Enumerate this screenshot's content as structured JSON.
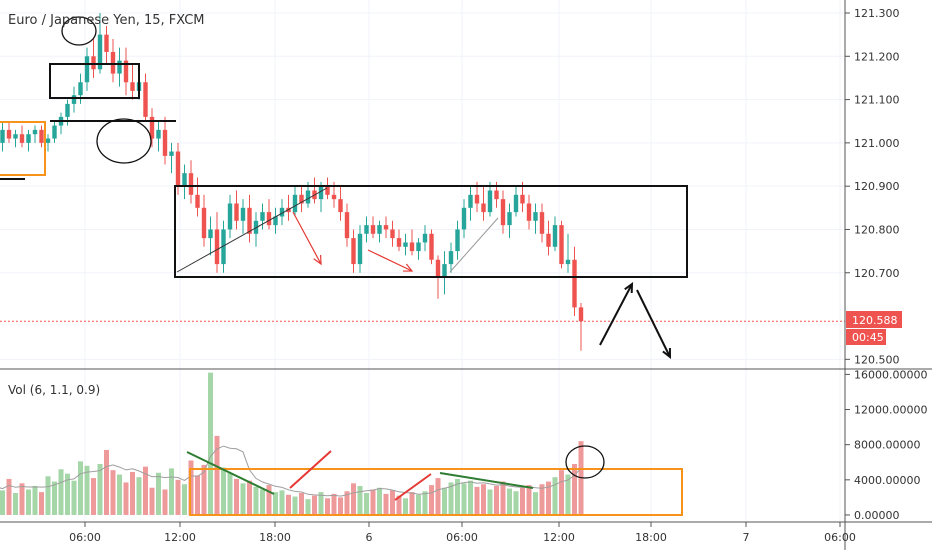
{
  "header": {
    "title": "Euro / Japanese Yen, 15, FXCM"
  },
  "volume": {
    "label": "Vol (6, 1.1, 0.9)"
  },
  "price_badge": {
    "value": "120.588",
    "countdown": "00:45"
  },
  "colors": {
    "up": "#26a69a",
    "down": "#ef5350",
    "up_vol": "#a5d6a7",
    "down_vol": "#ef9a9a",
    "orange": "#f7931a",
    "red_line": "#e53935",
    "green_line": "#2e7d32",
    "axis_text": "#333333"
  },
  "chart_data": [
    {
      "type": "candlestick",
      "title": "Euro / Japanese Yen, 15, FXCM",
      "y_ticks": [
        "121.300",
        "121.200",
        "121.100",
        "121.000",
        "120.900",
        "120.800",
        "120.700",
        "120.500"
      ],
      "ylim": [
        120.48,
        121.33
      ],
      "x_ticks": [
        "06:00",
        "12:00",
        "18:00",
        "6",
        "06:00",
        "12:00",
        "18:00",
        "7",
        "06:00"
      ],
      "last_price": 120.588,
      "ohlc": [
        [
          121.04,
          121.06,
          120.99,
          121.0
        ],
        [
          121.0,
          121.05,
          120.98,
          121.03
        ],
        [
          121.03,
          121.05,
          121.0,
          121.01
        ],
        [
          121.01,
          121.03,
          120.99,
          121.02
        ],
        [
          121.02,
          121.04,
          120.99,
          121.0
        ],
        [
          121.0,
          121.03,
          120.98,
          121.02
        ],
        [
          121.02,
          121.04,
          121.0,
          121.03
        ],
        [
          121.03,
          121.04,
          120.99,
          121.0
        ],
        [
          121.0,
          121.02,
          120.98,
          121.01
        ],
        [
          121.01,
          121.05,
          121.0,
          121.04
        ],
        [
          121.04,
          121.07,
          121.02,
          121.06
        ],
        [
          121.06,
          121.1,
          121.04,
          121.09
        ],
        [
          121.09,
          121.13,
          121.07,
          121.11
        ],
        [
          121.11,
          121.16,
          121.09,
          121.14
        ],
        [
          121.14,
          121.22,
          121.12,
          121.2
        ],
        [
          121.2,
          121.24,
          121.15,
          121.17
        ],
        [
          121.17,
          121.3,
          121.16,
          121.25
        ],
        [
          121.25,
          121.27,
          121.18,
          121.21
        ],
        [
          121.21,
          121.24,
          121.14,
          121.16
        ],
        [
          121.16,
          121.22,
          121.13,
          121.19
        ],
        [
          121.19,
          121.22,
          121.11,
          121.14
        ],
        [
          121.14,
          121.18,
          121.1,
          121.12
        ],
        [
          121.12,
          121.16,
          121.1,
          121.14
        ],
        [
          121.14,
          121.16,
          121.05,
          121.06
        ],
        [
          121.06,
          121.08,
          120.99,
          121.01
        ],
        [
          121.01,
          121.05,
          120.98,
          121.03
        ],
        [
          121.03,
          121.06,
          120.95,
          120.97
        ],
        [
          120.97,
          121.0,
          120.93,
          120.98
        ],
        [
          120.98,
          121.0,
          120.88,
          120.9
        ],
        [
          120.9,
          120.95,
          120.87,
          120.93
        ],
        [
          120.93,
          120.96,
          120.86,
          120.88
        ],
        [
          120.88,
          120.92,
          120.83,
          120.85
        ],
        [
          120.85,
          120.88,
          120.76,
          120.78
        ],
        [
          120.78,
          120.83,
          120.74,
          120.8
        ],
        [
          120.8,
          120.84,
          120.7,
          120.72
        ],
        [
          120.72,
          120.82,
          120.7,
          120.8
        ],
        [
          120.8,
          120.88,
          120.78,
          120.86
        ],
        [
          120.86,
          120.89,
          120.8,
          120.82
        ],
        [
          120.82,
          120.87,
          120.79,
          120.85
        ],
        [
          120.85,
          120.88,
          120.77,
          120.79
        ],
        [
          120.79,
          120.84,
          120.76,
          120.82
        ],
        [
          120.82,
          120.86,
          120.8,
          120.84
        ],
        [
          120.84,
          120.87,
          120.8,
          120.81
        ],
        [
          120.81,
          120.85,
          120.79,
          120.83
        ],
        [
          120.83,
          120.87,
          120.81,
          120.85
        ],
        [
          120.85,
          120.88,
          120.82,
          120.84
        ],
        [
          120.84,
          120.9,
          120.83,
          120.88
        ],
        [
          120.88,
          120.9,
          120.84,
          120.86
        ],
        [
          120.86,
          120.91,
          120.85,
          120.89
        ],
        [
          120.89,
          120.92,
          120.86,
          120.87
        ],
        [
          120.87,
          120.91,
          120.84,
          120.9
        ],
        [
          120.9,
          120.92,
          120.87,
          120.88
        ],
        [
          120.88,
          120.91,
          120.85,
          120.87
        ],
        [
          120.87,
          120.9,
          120.82,
          120.84
        ],
        [
          120.84,
          120.86,
          120.76,
          120.78
        ],
        [
          120.78,
          120.8,
          120.7,
          120.72
        ],
        [
          120.72,
          120.81,
          120.7,
          120.79
        ],
        [
          120.79,
          120.83,
          120.77,
          120.81
        ],
        [
          120.81,
          120.83,
          120.78,
          120.79
        ],
        [
          120.79,
          120.82,
          120.77,
          120.81
        ],
        [
          120.81,
          120.83,
          120.78,
          120.8
        ],
        [
          120.8,
          120.82,
          120.76,
          120.78
        ],
        [
          120.78,
          120.8,
          120.75,
          120.76
        ],
        [
          120.76,
          120.79,
          120.74,
          120.77
        ],
        [
          120.77,
          120.8,
          120.74,
          120.75
        ],
        [
          120.75,
          120.78,
          120.73,
          120.77
        ],
        [
          120.77,
          120.81,
          120.75,
          120.79
        ],
        [
          120.79,
          120.8,
          120.72,
          120.73
        ],
        [
          120.73,
          120.74,
          120.64,
          120.69
        ],
        [
          120.69,
          120.75,
          120.65,
          120.72
        ],
        [
          120.72,
          120.77,
          120.7,
          120.75
        ],
        [
          120.75,
          120.82,
          120.73,
          120.8
        ],
        [
          120.8,
          120.87,
          120.78,
          120.85
        ],
        [
          120.85,
          120.9,
          120.82,
          120.88
        ],
        [
          120.88,
          120.91,
          120.84,
          120.86
        ],
        [
          120.86,
          120.9,
          120.82,
          120.84
        ],
        [
          120.84,
          120.91,
          120.83,
          120.89
        ],
        [
          120.89,
          120.91,
          120.85,
          120.87
        ],
        [
          120.87,
          120.89,
          120.79,
          120.81
        ],
        [
          120.81,
          120.86,
          120.78,
          120.84
        ],
        [
          120.84,
          120.9,
          120.83,
          120.88
        ],
        [
          120.88,
          120.91,
          120.84,
          120.86
        ],
        [
          120.86,
          120.88,
          120.8,
          120.82
        ],
        [
          120.82,
          120.86,
          120.79,
          120.84
        ],
        [
          120.84,
          120.86,
          120.77,
          120.79
        ],
        [
          120.79,
          120.82,
          120.74,
          120.76
        ],
        [
          120.76,
          120.83,
          120.75,
          120.81
        ],
        [
          120.81,
          120.82,
          120.71,
          120.72
        ],
        [
          120.72,
          120.79,
          120.7,
          120.73
        ],
        [
          120.73,
          120.76,
          120.6,
          120.62
        ],
        [
          120.62,
          120.63,
          120.52,
          120.588
        ]
      ],
      "volume_ylim": [
        -800,
        16500
      ],
      "volume_ticks": [
        "16000.00000",
        "12000.00000",
        "8000.00000",
        "4000.00000",
        "0.00000"
      ],
      "volume": [
        3200,
        2800,
        4100,
        2500,
        3600,
        2900,
        3300,
        2600,
        4400,
        3800,
        5200,
        4700,
        3900,
        6100,
        5600,
        4200,
        5800,
        7400,
        5100,
        4600,
        3700,
        4900,
        4300,
        5500,
        3100,
        4800,
        2900,
        5300,
        4000,
        3500,
        6200,
        4500,
        5700,
        16200,
        9000,
        5400,
        4800,
        4100,
        3600,
        3900,
        3200,
        2900,
        3400,
        2600,
        2800,
        2300,
        2100,
        2500,
        1800,
        2200,
        2600,
        1900,
        2400,
        2000,
        2700,
        3600,
        3300,
        2500,
        2900,
        3100,
        2400,
        2800,
        2200,
        1900,
        2600,
        2300,
        2700,
        3400,
        4200,
        3100,
        3700,
        4100,
        3600,
        3900,
        3200,
        3500,
        2900,
        3300,
        3800,
        3000,
        2700,
        3100,
        3400,
        2600,
        3500,
        3800,
        4300,
        5100,
        4600,
        5800,
        8400
      ]
    }
  ]
}
